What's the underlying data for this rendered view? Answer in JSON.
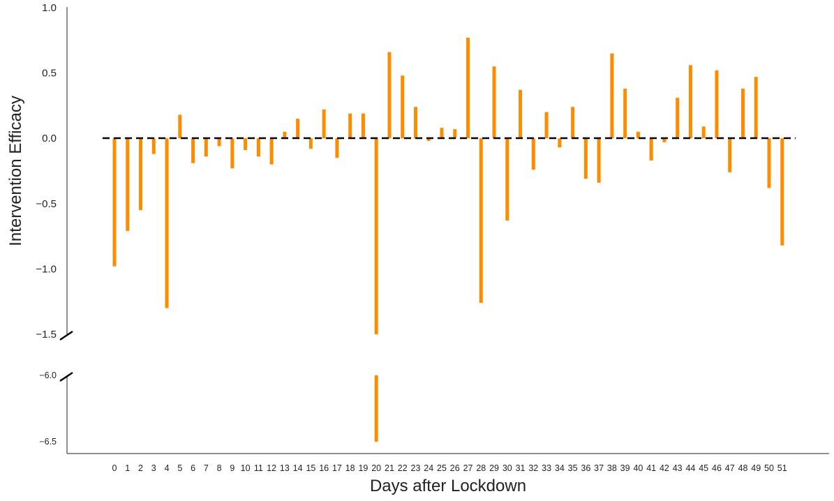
{
  "chart_data": {
    "type": "bar",
    "xlabel": "Days after Lockdown",
    "ylabel": "Intervention Efficacy",
    "categories": [
      "0",
      "1",
      "2",
      "3",
      "4",
      "5",
      "6",
      "7",
      "8",
      "9",
      "10",
      "11",
      "12",
      "13",
      "14",
      "15",
      "16",
      "17",
      "18",
      "19",
      "20",
      "21",
      "22",
      "23",
      "24",
      "25",
      "26",
      "27",
      "28",
      "29",
      "30",
      "31",
      "32",
      "33",
      "34",
      "35",
      "36",
      "37",
      "38",
      "39",
      "40",
      "41",
      "42",
      "43",
      "44",
      "45",
      "46",
      "47",
      "48",
      "49",
      "50",
      "51"
    ],
    "values": [
      -0.98,
      -0.71,
      -0.55,
      -0.12,
      -1.3,
      0.18,
      -0.19,
      -0.14,
      -0.06,
      -0.23,
      -0.09,
      -0.14,
      -0.2,
      0.05,
      0.15,
      -0.08,
      0.22,
      -0.15,
      0.19,
      0.19,
      -6.5,
      0.66,
      0.48,
      0.24,
      -0.02,
      0.08,
      0.07,
      0.77,
      -1.26,
      0.55,
      -0.63,
      0.37,
      -0.24,
      0.2,
      -0.07,
      0.24,
      -0.31,
      -0.34,
      0.65,
      0.38,
      0.05,
      -0.17,
      -0.03,
      0.31,
      0.56,
      0.09,
      0.52,
      -0.26,
      0.38,
      0.47,
      -0.38,
      -0.82
    ],
    "bar_color": "#ff8c00",
    "reference_line": 0.0,
    "broken_y_axis": true,
    "upper_panel": {
      "ylim": [
        -1.5,
        1.0
      ],
      "yticks": [
        1.0,
        0.5,
        0.0,
        -0.5,
        -1.0,
        -1.5
      ],
      "ytick_labels": [
        "1.0",
        "0.5",
        "0.0",
        "−0.5",
        "−1.0",
        "−1.5"
      ]
    },
    "lower_panel": {
      "ylim": [
        -6.5,
        -6.0
      ],
      "yticks": [
        -6.0,
        -6.5
      ],
      "ytick_labels": [
        "−6.0",
        "−6.5"
      ]
    },
    "grid": false,
    "legend": "none"
  }
}
